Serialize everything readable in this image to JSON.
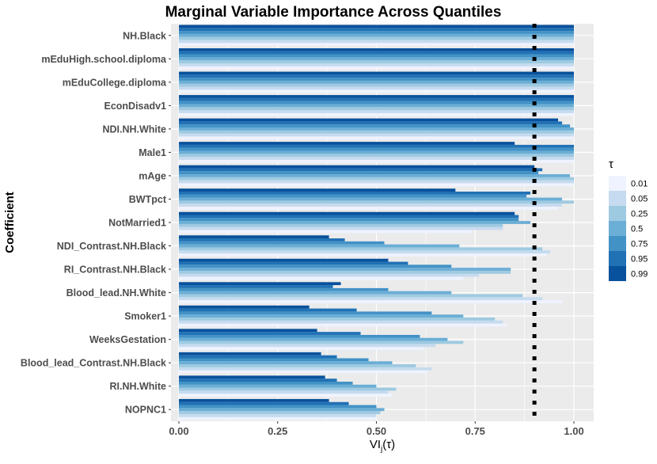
{
  "chart_data": {
    "type": "bar",
    "orientation": "horizontal",
    "title": "Marginal Variable Importance Across Quantiles",
    "xlabel": "VI_j(τ)",
    "xlabel_main": "VI",
    "xlabel_sub": "j",
    "xlabel_suffix": "(τ)",
    "ylabel": "Coefficient",
    "xlim": [
      -0.02,
      1.05
    ],
    "x_ticks": [
      0,
      0.25,
      0.5,
      0.75,
      1
    ],
    "x_tick_labels": [
      "0.00",
      "0.25",
      "0.50",
      "0.75",
      "1.00"
    ],
    "reference_line_x": 0.9,
    "reference_line_style": "dotted",
    "grid": true,
    "legend_position": "right",
    "legend_title": "τ",
    "categories": [
      "NH.Black",
      "mEduHigh.school.diploma",
      "mEduCollege.diploma",
      "EconDisadv1",
      "NDI.NH.White",
      "Male1",
      "mAge",
      "BWTpct",
      "NotMarried1",
      "NDI_Contrast.NH.Black",
      "RI_Contrast.NH.Black",
      "Blood_lead.NH.White",
      "Smoker1",
      "WeeksGestation",
      "Blood_lead_Contrast.NH.Black",
      "RI.NH.White",
      "NOPNC1"
    ],
    "series": [
      {
        "name": "0.01",
        "color": "#eff3ff",
        "values": [
          1.0,
          1.0,
          1.0,
          1.0,
          1.0,
          1.0,
          1.0,
          0.96,
          0.74,
          0.93,
          0.72,
          0.97,
          0.83,
          0.62,
          0.63,
          0.54,
          0.5
        ]
      },
      {
        "name": "0.05",
        "color": "#c6dbef",
        "values": [
          1.0,
          1.0,
          1.0,
          1.0,
          1.0,
          1.0,
          1.0,
          0.97,
          0.82,
          0.94,
          0.76,
          0.92,
          0.82,
          0.65,
          0.64,
          0.53,
          0.5
        ]
      },
      {
        "name": "0.25",
        "color": "#9ecae1",
        "values": [
          1.0,
          1.0,
          1.0,
          1.0,
          1.0,
          1.0,
          1.0,
          1.0,
          0.82,
          0.92,
          0.84,
          0.87,
          0.8,
          0.72,
          0.6,
          0.55,
          0.51
        ]
      },
      {
        "name": "0.5",
        "color": "#6baed6",
        "values": [
          1.0,
          1.0,
          1.0,
          1.0,
          1.0,
          1.0,
          0.99,
          0.97,
          0.89,
          0.71,
          0.84,
          0.69,
          0.72,
          0.68,
          0.54,
          0.5,
          0.52
        ]
      },
      {
        "name": "0.75",
        "color": "#4292c6",
        "values": [
          1.0,
          1.0,
          1.0,
          1.0,
          0.99,
          1.0,
          0.91,
          0.88,
          0.86,
          0.52,
          0.69,
          0.53,
          0.64,
          0.61,
          0.48,
          0.44,
          0.5
        ]
      },
      {
        "name": "0.95",
        "color": "#2171b5",
        "values": [
          1.0,
          1.0,
          1.0,
          1.0,
          0.97,
          1.0,
          0.92,
          0.89,
          0.86,
          0.42,
          0.58,
          0.39,
          0.45,
          0.46,
          0.4,
          0.4,
          0.43
        ]
      },
      {
        "name": "0.99",
        "color": "#08519c",
        "values": [
          1.0,
          1.0,
          1.0,
          1.0,
          0.96,
          0.85,
          0.9,
          0.7,
          0.85,
          0.38,
          0.53,
          0.41,
          0.33,
          0.35,
          0.36,
          0.37,
          0.38
        ]
      }
    ]
  }
}
